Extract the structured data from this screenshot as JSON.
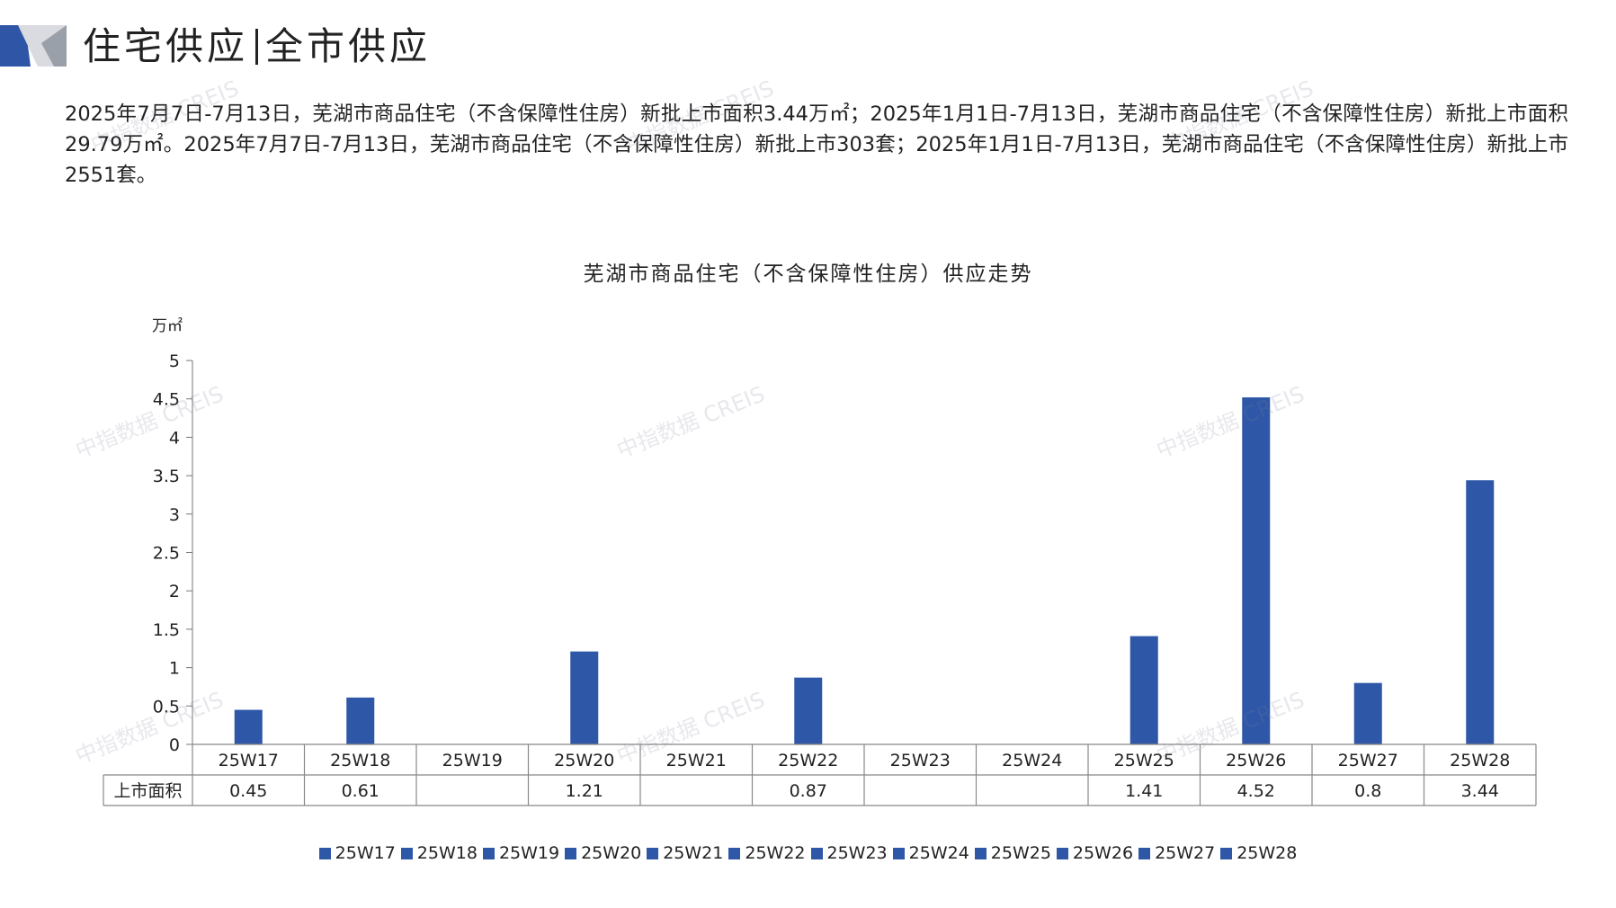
{
  "header": {
    "title_part1": "住宅供应",
    "title_part2": "全市供应",
    "accent_color": "#2f56a6"
  },
  "summary": "2025年7月7日-7月13日，芜湖市商品住宅（不含保障性住房）新批上市面积3.44万㎡；2025年1月1日-7月13日，芜湖市商品住宅（不含保障性住房）新批上市面积29.79万㎡。2025年7月7日-7月13日，芜湖市商品住宅（不含保障性住房）新批上市303套；2025年1月1日-7月13日，芜湖市商品住宅（不含保障性住房）新批上市2551套。",
  "watermark": "中指数据 CREIS",
  "chart_data": {
    "type": "bar",
    "title": "芜湖市商品住宅（不含保障性住房）供应走势",
    "ylabel": "万㎡",
    "ylim": [
      0,
      5
    ],
    "y_ticks": [
      "0",
      "0.5",
      "1",
      "1.5",
      "2",
      "2.5",
      "3",
      "3.5",
      "4",
      "4.5",
      "5"
    ],
    "categories": [
      "25W17",
      "25W18",
      "25W19",
      "25W20",
      "25W21",
      "25W22",
      "25W23",
      "25W24",
      "25W25",
      "25W26",
      "25W27",
      "25W28"
    ],
    "series": [
      {
        "name": "上市面积",
        "values": [
          0.45,
          0.61,
          null,
          1.21,
          null,
          0.87,
          null,
          null,
          1.41,
          4.52,
          0.8,
          3.44
        ],
        "labels": [
          "0.45",
          "0.61",
          "",
          "1.21",
          "",
          "0.87",
          "",
          "",
          "1.41",
          "4.52",
          "0.8",
          "3.44"
        ]
      }
    ],
    "legend": [
      "25W17",
      "25W18",
      "25W19",
      "25W20",
      "25W21",
      "25W22",
      "25W23",
      "25W24",
      "25W25",
      "25W26",
      "25W27",
      "25W28"
    ],
    "legend_position": "bottom",
    "grid": false,
    "bar_color": "#2e57a8",
    "data_table": true
  }
}
